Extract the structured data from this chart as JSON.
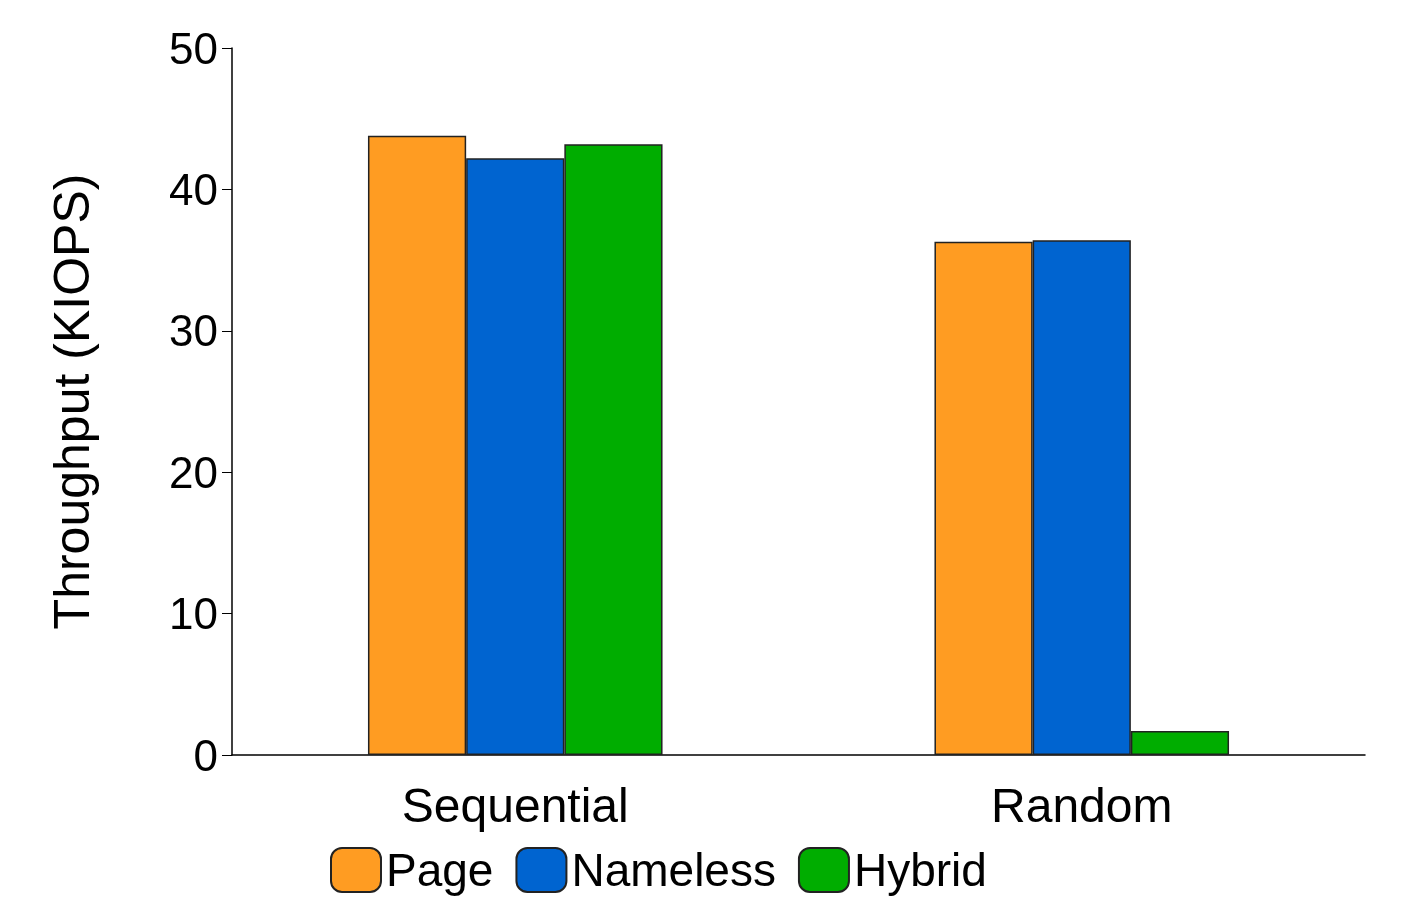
{
  "chart_data": {
    "type": "bar",
    "ylabel": "Throughput (KIOPS)",
    "categories": [
      "Sequential",
      "Random"
    ],
    "series": [
      {
        "name": "Page",
        "color": "#ff9c22",
        "values": [
          43.8,
          36.3
        ]
      },
      {
        "name": "Nameless",
        "color": "#0064d0",
        "values": [
          42.2,
          36.4
        ]
      },
      {
        "name": "Hybrid",
        "color": "#00ad00",
        "values": [
          43.2,
          1.7
        ]
      }
    ],
    "ylim": [
      0,
      50
    ],
    "yticks": [
      0,
      10,
      20,
      30,
      40,
      50
    ],
    "grid": false,
    "legend": "bottom"
  }
}
